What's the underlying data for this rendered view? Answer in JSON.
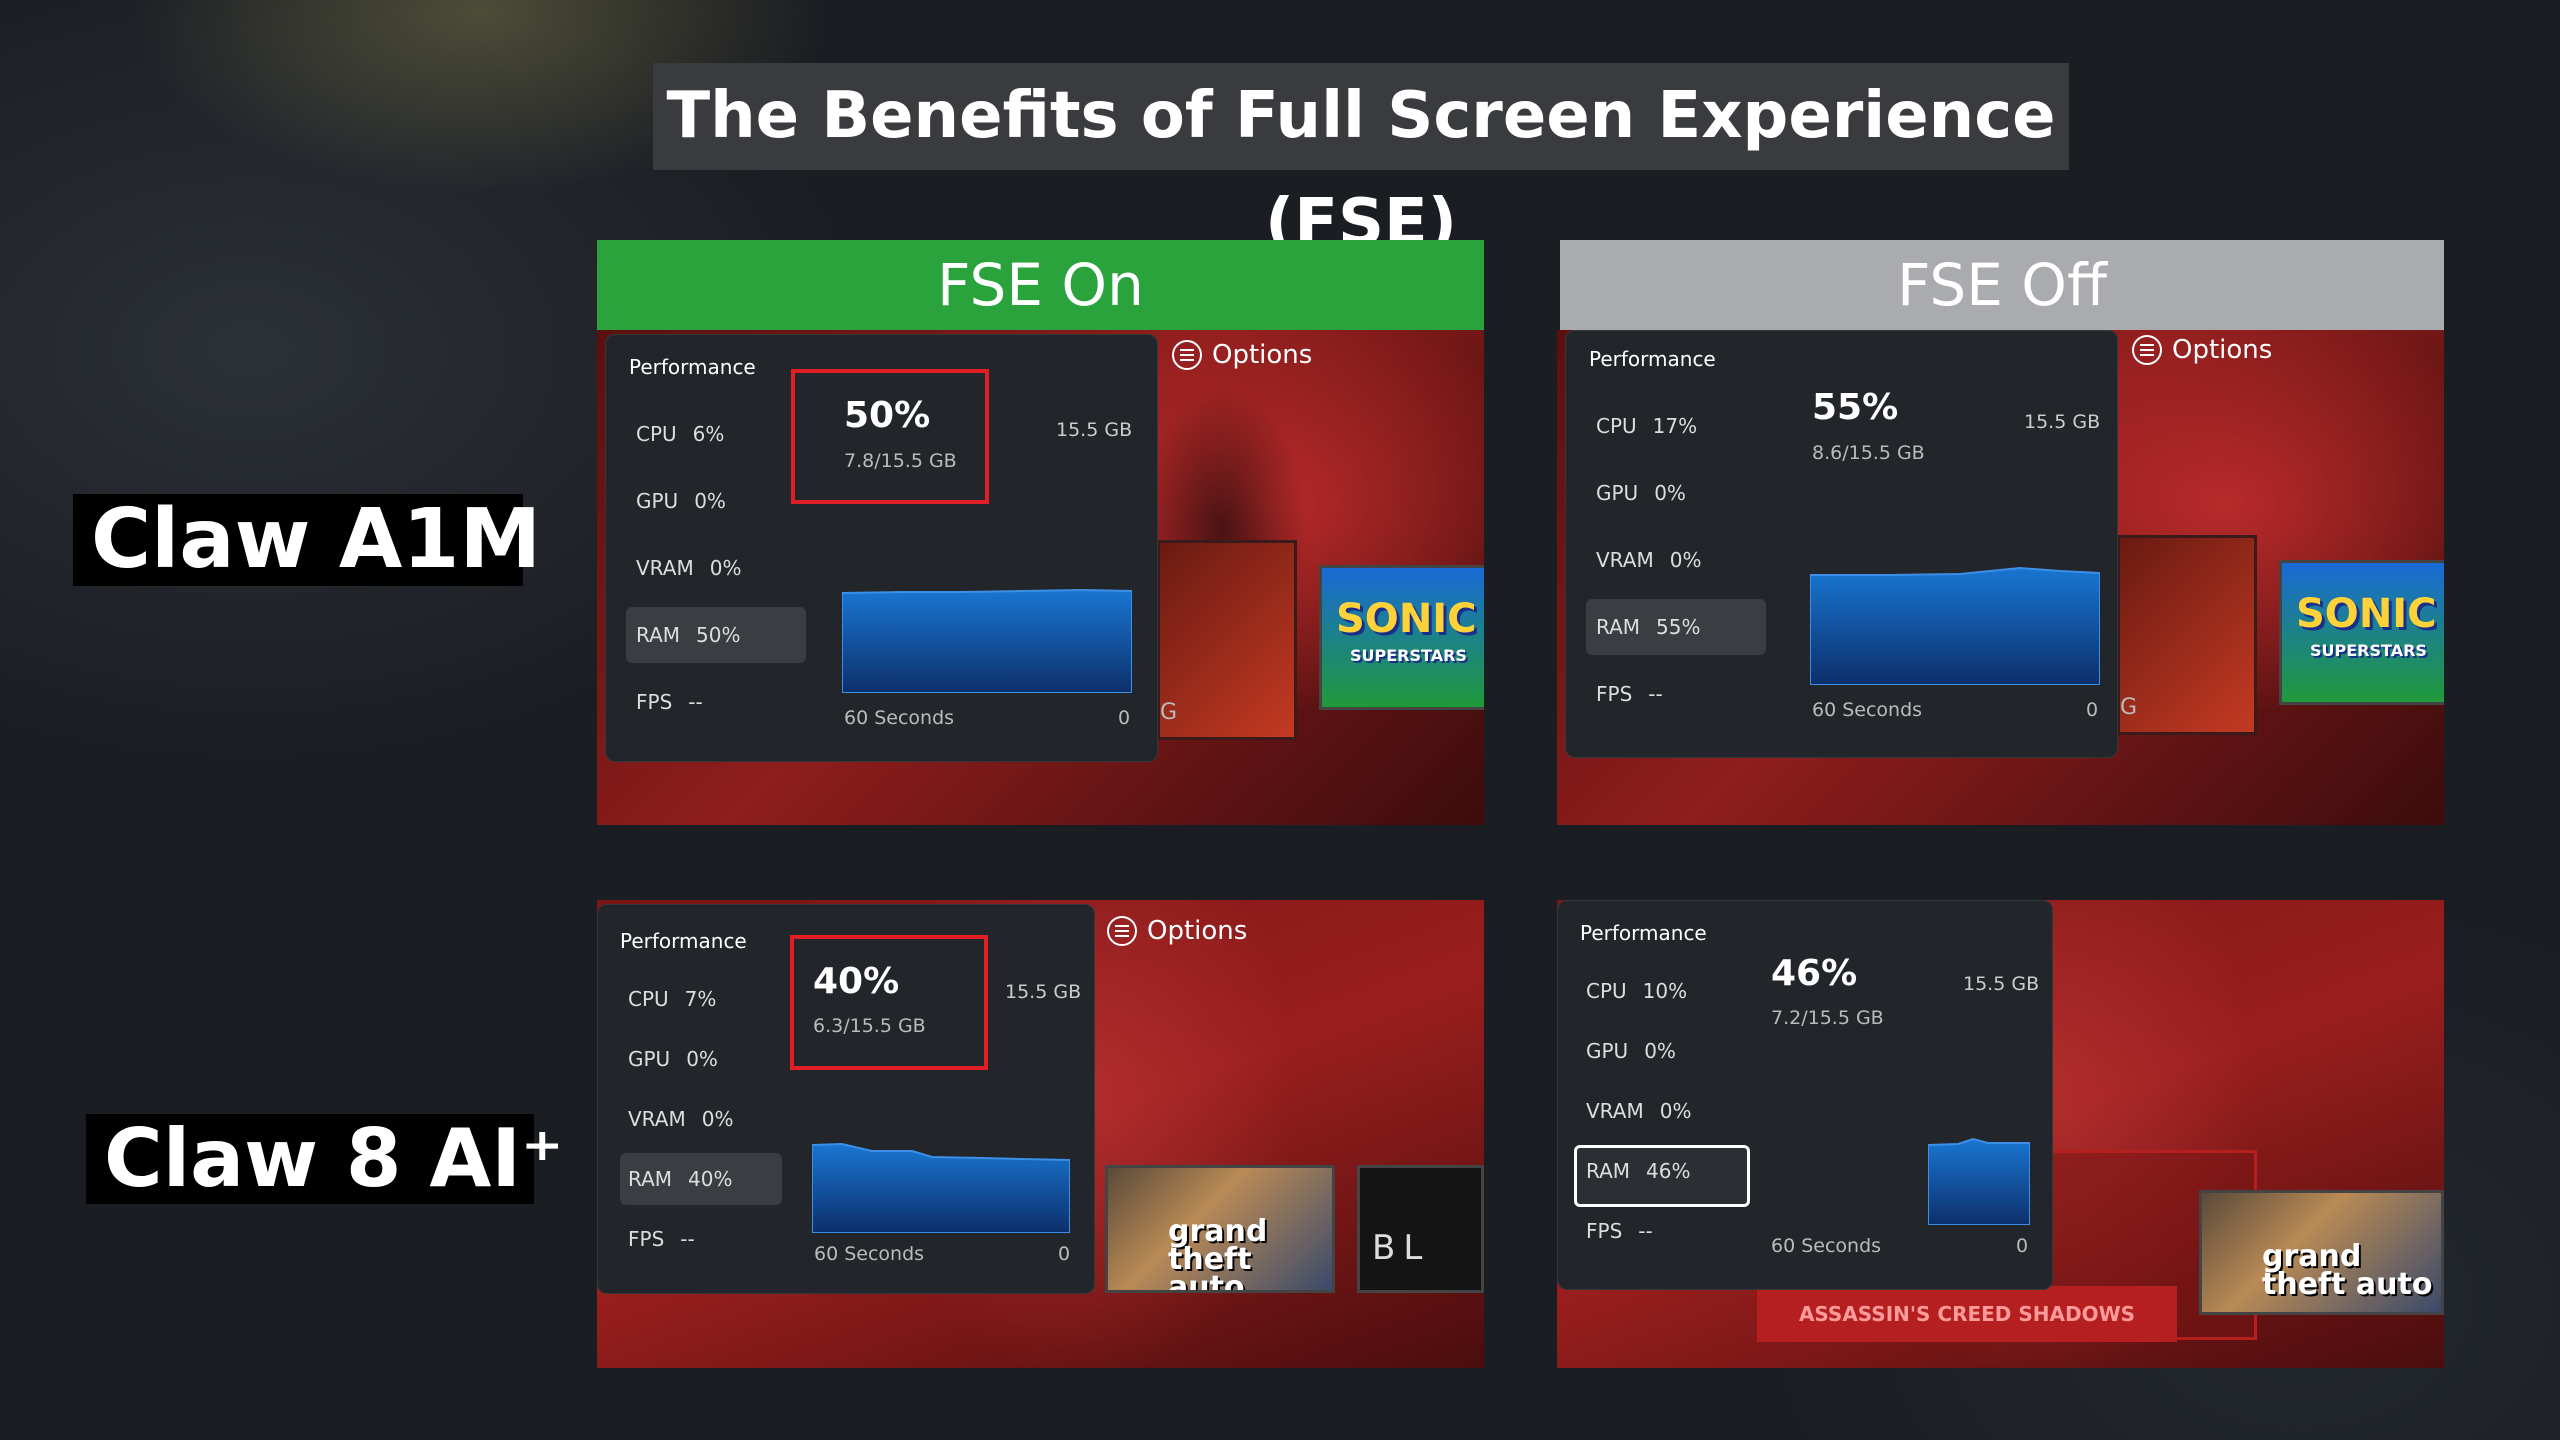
{
  "title": "The Benefits of Full Screen Experience (FSE)",
  "columns": {
    "on": "FSE On",
    "off": "FSE Off"
  },
  "devices": {
    "a": "Claw A1M",
    "b": "Claw 8 AI⁺"
  },
  "options_label": "Options",
  "colors": {
    "fse_on": "#2aa33c",
    "fse_off": "#a9abae",
    "highlight": "#e11d25",
    "graph": "#1565c0"
  },
  "panels": {
    "a_on": {
      "title": "Performance",
      "cpu": "6%",
      "gpu": "0%",
      "vram": "0%",
      "ram": "50%",
      "fps": "--",
      "percent": "50%",
      "usage": "7.8/15.5 GB",
      "total": "15.5 GB",
      "axis_left": "60 Seconds",
      "axis_right": "0"
    },
    "a_off": {
      "title": "Performance",
      "cpu": "17%",
      "gpu": "0%",
      "vram": "0%",
      "ram": "55%",
      "fps": "--",
      "percent": "55%",
      "usage": "8.6/15.5 GB",
      "total": "15.5 GB",
      "axis_left": "60 Seconds",
      "axis_right": "0"
    },
    "b_on": {
      "title": "Performance",
      "cpu": "7%",
      "gpu": "0%",
      "vram": "0%",
      "ram": "40%",
      "fps": "--",
      "percent": "40%",
      "usage": "6.3/15.5 GB",
      "total": "15.5 GB",
      "axis_left": "60 Seconds",
      "axis_right": "0"
    },
    "b_off": {
      "title": "Performance",
      "cpu": "10%",
      "gpu": "0%",
      "vram": "0%",
      "ram": "46%",
      "fps": "--",
      "percent": "46%",
      "usage": "7.2/15.5 GB",
      "total": "15.5 GB",
      "axis_left": "60 Seconds",
      "axis_right": "0"
    }
  },
  "metric_labels": {
    "cpu": "CPU",
    "gpu": "GPU",
    "vram": "VRAM",
    "ram": "RAM",
    "fps": "FPS"
  },
  "games": {
    "sonic": "SONIC",
    "sonic_sub": "SUPERSTARS",
    "gta": "grand theft auto",
    "bl": "BL",
    "g_letter": "G",
    "assassin": "ASSASSIN'S CREED SHADOWS"
  }
}
